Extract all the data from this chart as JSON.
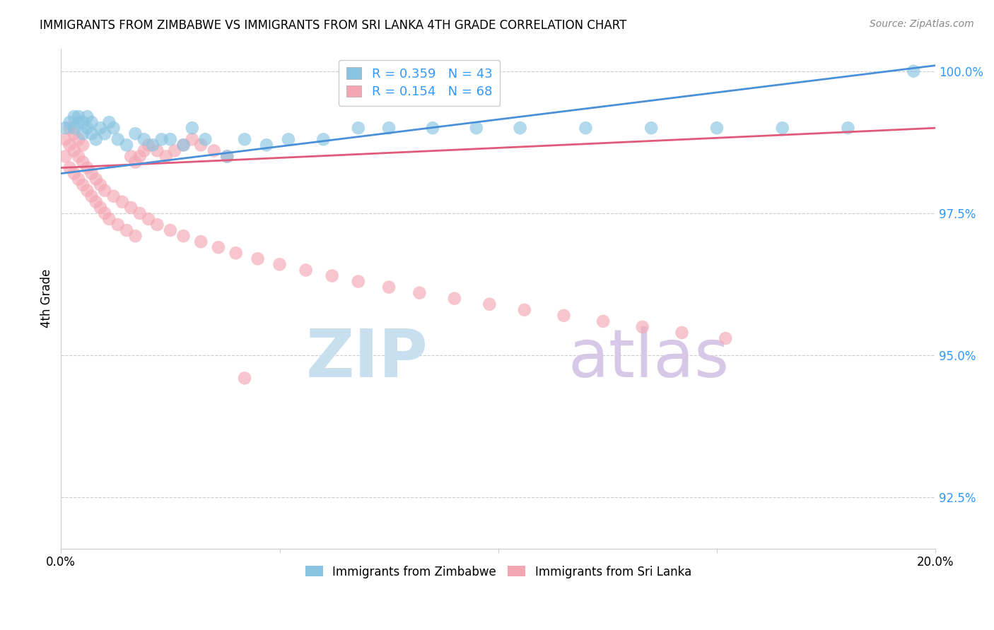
{
  "title": "IMMIGRANTS FROM ZIMBABWE VS IMMIGRANTS FROM SRI LANKA 4TH GRADE CORRELATION CHART",
  "source": "Source: ZipAtlas.com",
  "ylabel": "4th Grade",
  "xlim": [
    0.0,
    0.2
  ],
  "ylim": [
    0.916,
    1.004
  ],
  "yticks": [
    0.925,
    0.95,
    0.975,
    1.0
  ],
  "ytick_labels": [
    "92.5%",
    "95.0%",
    "97.5%",
    "100.0%"
  ],
  "xticks": [
    0.0,
    0.05,
    0.1,
    0.15,
    0.2
  ],
  "xtick_labels": [
    "0.0%",
    "",
    "",
    "",
    "20.0%"
  ],
  "color_zimbabwe": "#89c4e1",
  "color_srilanka": "#f4a7b3",
  "legend_R_zimbabwe": "R = 0.359",
  "legend_N_zimbabwe": "N = 43",
  "legend_R_srilanka": "R = 0.154",
  "legend_N_srilanka": "N = 68",
  "line_color_zimbabwe": "#4a90d9",
  "line_color_srilanka": "#e05a7a",
  "watermark_zip": "ZIP",
  "watermark_atlas": "atlas",
  "watermark_color_zip": "#c8dff0",
  "watermark_color_atlas": "#d8c8e8",
  "zimbabwe_x": [
    0.001,
    0.002,
    0.003,
    0.003,
    0.004,
    0.004,
    0.005,
    0.005,
    0.006,
    0.006,
    0.007,
    0.007,
    0.008,
    0.009,
    0.01,
    0.011,
    0.012,
    0.013,
    0.015,
    0.017,
    0.019,
    0.021,
    0.023,
    0.025,
    0.028,
    0.03,
    0.033,
    0.038,
    0.042,
    0.047,
    0.052,
    0.06,
    0.068,
    0.075,
    0.085,
    0.095,
    0.105,
    0.12,
    0.135,
    0.15,
    0.165,
    0.18,
    0.195
  ],
  "zimbabwe_y": [
    0.99,
    0.991,
    0.992,
    0.99,
    0.991,
    0.992,
    0.989,
    0.991,
    0.99,
    0.992,
    0.989,
    0.991,
    0.988,
    0.99,
    0.989,
    0.991,
    0.99,
    0.988,
    0.987,
    0.989,
    0.988,
    0.987,
    0.988,
    0.988,
    0.987,
    0.99,
    0.988,
    0.985,
    0.988,
    0.987,
    0.988,
    0.988,
    0.99,
    0.99,
    0.99,
    0.99,
    0.99,
    0.99,
    0.99,
    0.99,
    0.99,
    0.99,
    1.0
  ],
  "srilanka_x": [
    0.001,
    0.001,
    0.002,
    0.002,
    0.002,
    0.003,
    0.003,
    0.003,
    0.004,
    0.004,
    0.004,
    0.005,
    0.005,
    0.005,
    0.006,
    0.006,
    0.007,
    0.007,
    0.008,
    0.008,
    0.009,
    0.009,
    0.01,
    0.01,
    0.011,
    0.012,
    0.013,
    0.014,
    0.015,
    0.016,
    0.017,
    0.018,
    0.02,
    0.022,
    0.025,
    0.028,
    0.032,
    0.036,
    0.04,
    0.045,
    0.05,
    0.056,
    0.062,
    0.068,
    0.075,
    0.082,
    0.09,
    0.098,
    0.106,
    0.115,
    0.124,
    0.133,
    0.142,
    0.152,
    0.016,
    0.017,
    0.018,
    0.019,
    0.02,
    0.022,
    0.024,
    0.026,
    0.028,
    0.03,
    0.032,
    0.035,
    0.038,
    0.042
  ],
  "srilanka_y": [
    0.985,
    0.988,
    0.983,
    0.987,
    0.99,
    0.982,
    0.986,
    0.989,
    0.981,
    0.985,
    0.988,
    0.98,
    0.984,
    0.987,
    0.979,
    0.983,
    0.978,
    0.982,
    0.977,
    0.981,
    0.976,
    0.98,
    0.975,
    0.979,
    0.974,
    0.978,
    0.973,
    0.977,
    0.972,
    0.976,
    0.971,
    0.975,
    0.974,
    0.973,
    0.972,
    0.971,
    0.97,
    0.969,
    0.968,
    0.967,
    0.966,
    0.965,
    0.964,
    0.963,
    0.962,
    0.961,
    0.96,
    0.959,
    0.958,
    0.957,
    0.956,
    0.955,
    0.954,
    0.953,
    0.985,
    0.984,
    0.985,
    0.986,
    0.987,
    0.986,
    0.985,
    0.986,
    0.987,
    0.988,
    0.987,
    0.986,
    0.985,
    0.946
  ]
}
